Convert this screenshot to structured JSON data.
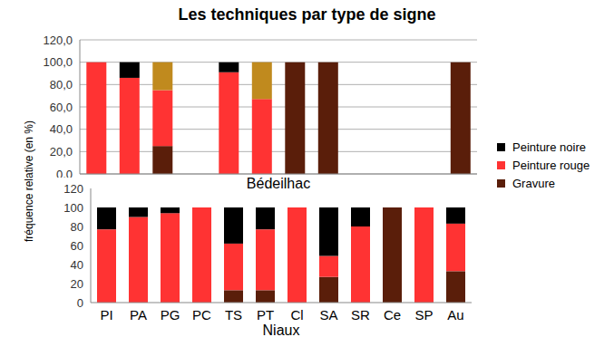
{
  "chart_data": [
    {
      "type": "bar",
      "title": "Les techniques par type de signe",
      "x_label": "Bédeilhac",
      "y_label": "fréquence relative (en %)",
      "stacked": true,
      "grid": true,
      "tick_labels": "y",
      "categories": [
        "PI",
        "PA",
        "PG",
        "PC",
        "TS",
        "PT",
        "Cl",
        "SA",
        "SR",
        "Ce",
        "SP",
        "Au"
      ],
      "ylim": [
        0,
        120
      ],
      "yticks": [
        {
          "value": 0,
          "label": "0,0"
        },
        {
          "value": 20,
          "label": "20,0"
        },
        {
          "value": 40,
          "label": "40,0"
        },
        {
          "value": 60,
          "label": "60,0"
        },
        {
          "value": 80,
          "label": "80,0"
        },
        {
          "value": 100,
          "label": "100,0"
        },
        {
          "value": 120,
          "label": "120,0"
        }
      ],
      "series": [
        {
          "name": "Gravure",
          "color": "#5a1e0a",
          "values": [
            null,
            null,
            25,
            null,
            null,
            null,
            100,
            100,
            null,
            null,
            null,
            100
          ]
        },
        {
          "name": "Peinture rouge",
          "color": "#ff3333",
          "values": [
            100,
            86,
            50,
            null,
            91,
            67,
            null,
            null,
            null,
            null,
            null,
            null
          ]
        },
        {
          "name": "Peinture noire",
          "color": "#000000",
          "values": [
            null,
            14,
            null,
            null,
            9,
            null,
            null,
            null,
            null,
            null,
            null,
            null
          ]
        },
        {
          "name": null,
          "color": "#c08a1e",
          "values": [
            null,
            null,
            25,
            null,
            null,
            33,
            null,
            null,
            null,
            null,
            null,
            null
          ]
        }
      ]
    },
    {
      "type": "bar",
      "x_label": "Niaux",
      "stacked": true,
      "grid": false,
      "legend": "right",
      "categories": [
        "PI",
        "PA",
        "PG",
        "PC",
        "TS",
        "PT",
        "Cl",
        "SA",
        "SR",
        "Ce",
        "SP",
        "Au"
      ],
      "ylim": [
        0,
        120
      ],
      "yticks": [
        0,
        20,
        40,
        60,
        80,
        100,
        120
      ],
      "series": [
        {
          "name": "Gravure",
          "color": "#5a1e0a",
          "values": [
            null,
            null,
            null,
            null,
            13,
            13,
            null,
            27,
            null,
            100,
            null,
            33
          ]
        },
        {
          "name": "Peinture rouge",
          "color": "#ff3333",
          "values": [
            77,
            90,
            94,
            100,
            49,
            64,
            100,
            22,
            80,
            null,
            100,
            50
          ]
        },
        {
          "name": "Peinture noire",
          "color": "#000000",
          "values": [
            23,
            10,
            6,
            null,
            38,
            23,
            null,
            51,
            20,
            null,
            null,
            17
          ]
        }
      ]
    }
  ]
}
